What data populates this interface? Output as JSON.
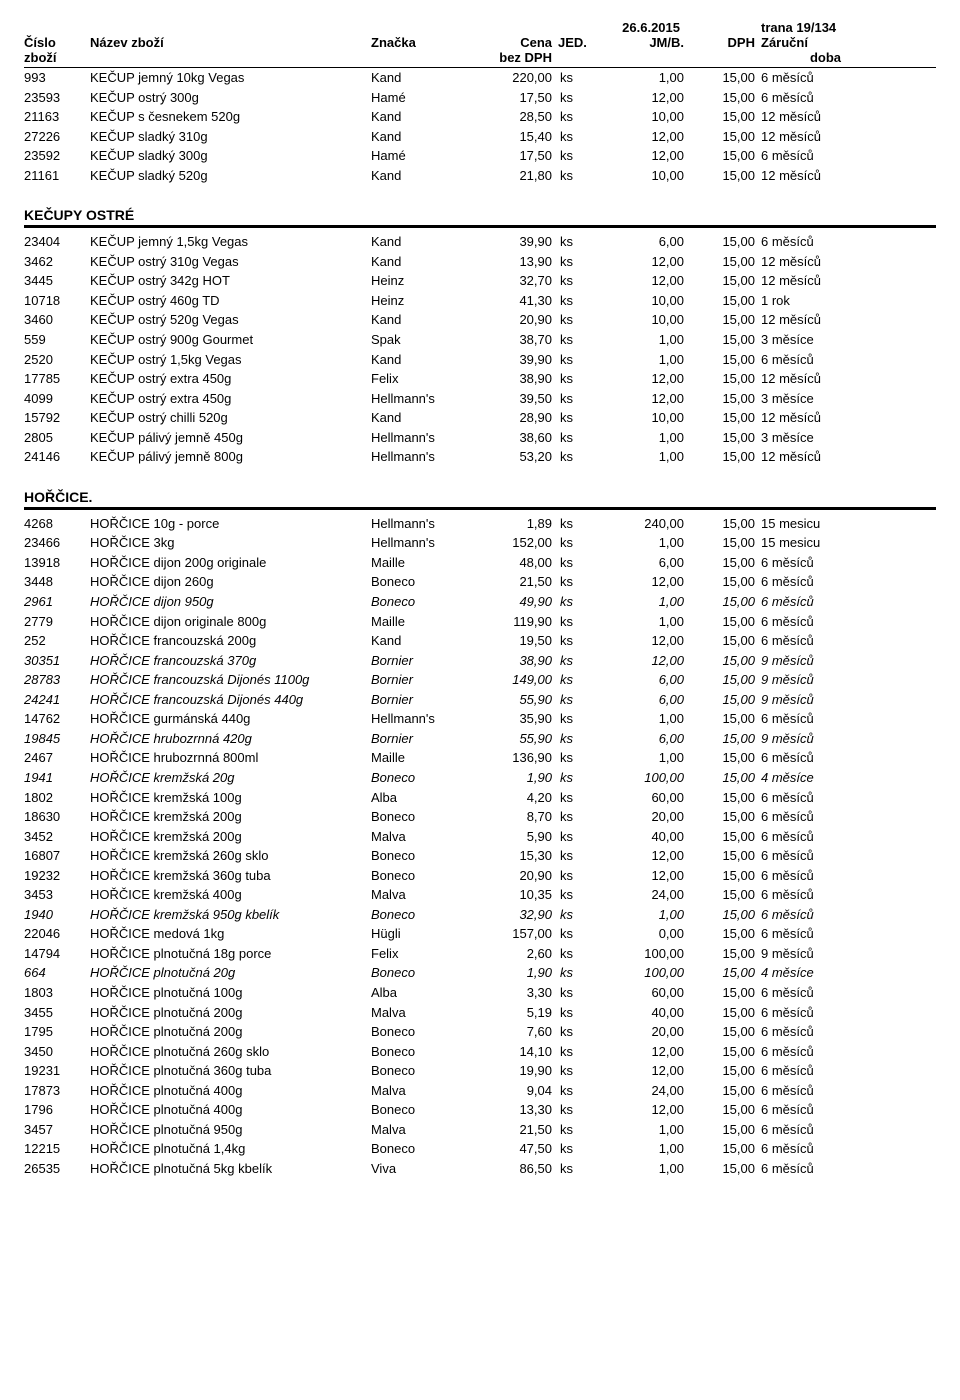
{
  "header": {
    "date": "26.6.2015",
    "page": "trana 19/134",
    "cislo": "Číslo",
    "zbozi": "zboží",
    "nazev": "Název zboží",
    "znacka": "Značka",
    "cena": "Cena",
    "bezdph": "bez DPH",
    "jed": "JED.",
    "jmb": "JM/B.",
    "dph": "DPH",
    "zarucni": "Záruční",
    "doba": "doba"
  },
  "sections": [
    {
      "title": "",
      "rows": [
        {
          "code": "993",
          "name": "KEČUP jemný 10kg Vegas",
          "brand": "Kand",
          "price": "220,00",
          "unit": "ks",
          "jmb": "1,00",
          "dph": "15,00",
          "warranty": "6 měsíců",
          "italic": false
        },
        {
          "code": "23593",
          "name": "KEČUP ostrý 300g",
          "brand": "Hamé",
          "price": "17,50",
          "unit": "ks",
          "jmb": "12,00",
          "dph": "15,00",
          "warranty": "6 měsíců",
          "italic": false
        },
        {
          "code": "21163",
          "name": "KEČUP s česnekem 520g",
          "brand": "Kand",
          "price": "28,50",
          "unit": "ks",
          "jmb": "10,00",
          "dph": "15,00",
          "warranty": "12 měsíců",
          "italic": false
        },
        {
          "code": "27226",
          "name": "KEČUP sladký 310g",
          "brand": "Kand",
          "price": "15,40",
          "unit": "ks",
          "jmb": "12,00",
          "dph": "15,00",
          "warranty": "12 měsíců",
          "italic": false
        },
        {
          "code": "23592",
          "name": "KEČUP sladký 300g",
          "brand": "Hamé",
          "price": "17,50",
          "unit": "ks",
          "jmb": "12,00",
          "dph": "15,00",
          "warranty": "6 měsíců",
          "italic": false
        },
        {
          "code": "21161",
          "name": "KEČUP sladký 520g",
          "brand": "Kand",
          "price": "21,80",
          "unit": "ks",
          "jmb": "10,00",
          "dph": "15,00",
          "warranty": "12 měsíců",
          "italic": false
        }
      ]
    },
    {
      "title": "KEČUPY OSTRÉ",
      "rows": [
        {
          "code": "23404",
          "name": "KEČUP jemný 1,5kg Vegas",
          "brand": "Kand",
          "price": "39,90",
          "unit": "ks",
          "jmb": "6,00",
          "dph": "15,00",
          "warranty": "6 měsíců",
          "italic": false
        },
        {
          "code": "3462",
          "name": "KEČUP ostrý 310g Vegas",
          "brand": "Kand",
          "price": "13,90",
          "unit": "ks",
          "jmb": "12,00",
          "dph": "15,00",
          "warranty": "12 měsíců",
          "italic": false
        },
        {
          "code": "3445",
          "name": "KEČUP ostrý 342g HOT",
          "brand": "Heinz",
          "price": "32,70",
          "unit": "ks",
          "jmb": "12,00",
          "dph": "15,00",
          "warranty": "12 měsíců",
          "italic": false
        },
        {
          "code": "10718",
          "name": "KEČUP ostrý 460g TD",
          "brand": "Heinz",
          "price": "41,30",
          "unit": "ks",
          "jmb": "10,00",
          "dph": "15,00",
          "warranty": "1 rok",
          "italic": false
        },
        {
          "code": "3460",
          "name": "KEČUP ostrý 520g Vegas",
          "brand": "Kand",
          "price": "20,90",
          "unit": "ks",
          "jmb": "10,00",
          "dph": "15,00",
          "warranty": "12 měsíců",
          "italic": false
        },
        {
          "code": "559",
          "name": "KEČUP ostrý 900g Gourmet",
          "brand": "Spak",
          "price": "38,70",
          "unit": "ks",
          "jmb": "1,00",
          "dph": "15,00",
          "warranty": "3 měsíce",
          "italic": false
        },
        {
          "code": "2520",
          "name": "KEČUP ostrý 1,5kg Vegas",
          "brand": "Kand",
          "price": "39,90",
          "unit": "ks",
          "jmb": "1,00",
          "dph": "15,00",
          "warranty": "6 měsíců",
          "italic": false
        },
        {
          "code": "17785",
          "name": "KEČUP ostrý extra 450g",
          "brand": "Felix",
          "price": "38,90",
          "unit": "ks",
          "jmb": "12,00",
          "dph": "15,00",
          "warranty": "12 měsíců",
          "italic": false
        },
        {
          "code": "4099",
          "name": "KEČUP ostrý extra 450g",
          "brand": "Hellmann's",
          "price": "39,50",
          "unit": "ks",
          "jmb": "12,00",
          "dph": "15,00",
          "warranty": "3 měsíce",
          "italic": false
        },
        {
          "code": "15792",
          "name": "KEČUP ostrý chilli 520g",
          "brand": "Kand",
          "price": "28,90",
          "unit": "ks",
          "jmb": "10,00",
          "dph": "15,00",
          "warranty": "12 měsíců",
          "italic": false
        },
        {
          "code": "2805",
          "name": "KEČUP pálivý jemně 450g",
          "brand": "Hellmann's",
          "price": "38,60",
          "unit": "ks",
          "jmb": "1,00",
          "dph": "15,00",
          "warranty": "3 měsíce",
          "italic": false
        },
        {
          "code": "24146",
          "name": "KEČUP pálivý jemně 800g",
          "brand": "Hellmann's",
          "price": "53,20",
          "unit": "ks",
          "jmb": "1,00",
          "dph": "15,00",
          "warranty": "12 měsíců",
          "italic": false
        }
      ]
    },
    {
      "title": "HOŘČICE.",
      "rows": [
        {
          "code": "4268",
          "name": "HOŘČICE 10g - porce",
          "brand": "Hellmann's",
          "price": "1,89",
          "unit": "ks",
          "jmb": "240,00",
          "dph": "15,00",
          "warranty": "15 mesicu",
          "italic": false
        },
        {
          "code": "23466",
          "name": "HOŘČICE 3kg",
          "brand": "Hellmann's",
          "price": "152,00",
          "unit": "ks",
          "jmb": "1,00",
          "dph": "15,00",
          "warranty": "15 mesicu",
          "italic": false
        },
        {
          "code": "13918",
          "name": "HOŘČICE dijon 200g originale",
          "brand": "Maille",
          "price": "48,00",
          "unit": "ks",
          "jmb": "6,00",
          "dph": "15,00",
          "warranty": "6 měsíců",
          "italic": false
        },
        {
          "code": "3448",
          "name": "HOŘČICE dijon 260g",
          "brand": "Boneco",
          "price": "21,50",
          "unit": "ks",
          "jmb": "12,00",
          "dph": "15,00",
          "warranty": "6 měsíců",
          "italic": false
        },
        {
          "code": "2961",
          "name": "HOŘČICE dijon 950g",
          "brand": "Boneco",
          "price": "49,90",
          "unit": "ks",
          "jmb": "1,00",
          "dph": "15,00",
          "warranty": "6 měsíců",
          "italic": true
        },
        {
          "code": "2779",
          "name": "HOŘČICE dijon originale 800g",
          "brand": "Maille",
          "price": "119,90",
          "unit": "ks",
          "jmb": "1,00",
          "dph": "15,00",
          "warranty": "6 měsíců",
          "italic": false
        },
        {
          "code": "252",
          "name": "HOŘČICE francouzská 200g",
          "brand": "Kand",
          "price": "19,50",
          "unit": "ks",
          "jmb": "12,00",
          "dph": "15,00",
          "warranty": "6 měsíců",
          "italic": false
        },
        {
          "code": "30351",
          "name": "HOŘČICE francouzská 370g",
          "brand": "Bornier",
          "price": "38,90",
          "unit": "ks",
          "jmb": "12,00",
          "dph": "15,00",
          "warranty": "9 měsíců",
          "italic": true
        },
        {
          "code": "28783",
          "name": "HOŘČICE francouzská Dijonés 1100g",
          "brand": "Bornier",
          "price": "149,00",
          "unit": "ks",
          "jmb": "6,00",
          "dph": "15,00",
          "warranty": "9 měsíců",
          "italic": true
        },
        {
          "code": "24241",
          "name": "HOŘČICE francouzská Dijonés 440g",
          "brand": "Bornier",
          "price": "55,90",
          "unit": "ks",
          "jmb": "6,00",
          "dph": "15,00",
          "warranty": "9 měsíců",
          "italic": true
        },
        {
          "code": "14762",
          "name": "HOŘČICE gurmánská 440g",
          "brand": "Hellmann's",
          "price": "35,90",
          "unit": "ks",
          "jmb": "1,00",
          "dph": "15,00",
          "warranty": "6 měsíců",
          "italic": false
        },
        {
          "code": "19845",
          "name": "HOŘČICE hrubozrnná 420g",
          "brand": "Bornier",
          "price": "55,90",
          "unit": "ks",
          "jmb": "6,00",
          "dph": "15,00",
          "warranty": "9 měsíců",
          "italic": true
        },
        {
          "code": "2467",
          "name": "HOŘČICE hrubozrnná 800ml",
          "brand": "Maille",
          "price": "136,90",
          "unit": "ks",
          "jmb": "1,00",
          "dph": "15,00",
          "warranty": "6 měsíců",
          "italic": false
        },
        {
          "code": "1941",
          "name": "HOŘČICE kremžská  20g",
          "brand": "Boneco",
          "price": "1,90",
          "unit": "ks",
          "jmb": "100,00",
          "dph": "15,00",
          "warranty": "4 měsíce",
          "italic": true
        },
        {
          "code": "1802",
          "name": "HOŘČICE kremžská 100g",
          "brand": "Alba",
          "price": "4,20",
          "unit": "ks",
          "jmb": "60,00",
          "dph": "15,00",
          "warranty": "6 měsíců",
          "italic": false
        },
        {
          "code": "18630",
          "name": "HOŘČICE kremžská 200g",
          "brand": "Boneco",
          "price": "8,70",
          "unit": "ks",
          "jmb": "20,00",
          "dph": "15,00",
          "warranty": "6 měsíců",
          "italic": false
        },
        {
          "code": "3452",
          "name": "HOŘČICE kremžská 200g",
          "brand": "Malva",
          "price": "5,90",
          "unit": "ks",
          "jmb": "40,00",
          "dph": "15,00",
          "warranty": "6 měsíců",
          "italic": false
        },
        {
          "code": "16807",
          "name": "HOŘČICE kremžská 260g sklo",
          "brand": "Boneco",
          "price": "15,30",
          "unit": "ks",
          "jmb": "12,00",
          "dph": "15,00",
          "warranty": "6 měsíců",
          "italic": false
        },
        {
          "code": "19232",
          "name": "HOŘČICE kremžská 360g  tuba",
          "brand": "Boneco",
          "price": "20,90",
          "unit": "ks",
          "jmb": "12,00",
          "dph": "15,00",
          "warranty": "6 měsíců",
          "italic": false
        },
        {
          "code": "3453",
          "name": "HOŘČICE kremžská 400g",
          "brand": "Malva",
          "price": "10,35",
          "unit": "ks",
          "jmb": "24,00",
          "dph": "15,00",
          "warranty": "6 měsíců",
          "italic": false
        },
        {
          "code": "1940",
          "name": "HOŘČICE kremžská 950g kbelík",
          "brand": "Boneco",
          "price": "32,90",
          "unit": "ks",
          "jmb": "1,00",
          "dph": "15,00",
          "warranty": "6 měsíců",
          "italic": true
        },
        {
          "code": "22046",
          "name": "HOŘČICE medová 1kg",
          "brand": "Hügli",
          "price": "157,00",
          "unit": "ks",
          "jmb": "0,00",
          "dph": "15,00",
          "warranty": "6 měsíců",
          "italic": false
        },
        {
          "code": "14794",
          "name": "HOŘČICE plnotučná   18g porce",
          "brand": "Felix",
          "price": "2,60",
          "unit": "ks",
          "jmb": "100,00",
          "dph": "15,00",
          "warranty": "9 měsíců",
          "italic": false
        },
        {
          "code": "664",
          "name": "HOŘČICE plnotučná   20g",
          "brand": "Boneco",
          "price": "1,90",
          "unit": "ks",
          "jmb": "100,00",
          "dph": "15,00",
          "warranty": "4 měsíce",
          "italic": true
        },
        {
          "code": "1803",
          "name": "HOŘČICE plnotučná  100g",
          "brand": "Alba",
          "price": "3,30",
          "unit": "ks",
          "jmb": "60,00",
          "dph": "15,00",
          "warranty": "6 měsíců",
          "italic": false
        },
        {
          "code": "3455",
          "name": "HOŘČICE plnotučná  200g",
          "brand": "Malva",
          "price": "5,19",
          "unit": "ks",
          "jmb": "40,00",
          "dph": "15,00",
          "warranty": "6 měsíců",
          "italic": false
        },
        {
          "code": "1795",
          "name": "HOŘČICE plnotučná  200g",
          "brand": "Boneco",
          "price": "7,60",
          "unit": "ks",
          "jmb": "20,00",
          "dph": "15,00",
          "warranty": "6 měsíců",
          "italic": false
        },
        {
          "code": "3450",
          "name": "HOŘČICE plnotučná  260g  sklo",
          "brand": "Boneco",
          "price": "14,10",
          "unit": "ks",
          "jmb": "12,00",
          "dph": "15,00",
          "warranty": "6 měsíců",
          "italic": false
        },
        {
          "code": "19231",
          "name": "HOŘČICE plnotučná  360g  tuba",
          "brand": "Boneco",
          "price": "19,90",
          "unit": "ks",
          "jmb": "12,00",
          "dph": "15,00",
          "warranty": "6 měsíců",
          "italic": false
        },
        {
          "code": "17873",
          "name": "HOŘČICE plnotučná  400g",
          "brand": "Malva",
          "price": "9,04",
          "unit": "ks",
          "jmb": "24,00",
          "dph": "15,00",
          "warranty": "6 měsíců",
          "italic": false
        },
        {
          "code": "1796",
          "name": "HOŘČICE plnotučná  400g",
          "brand": "Boneco",
          "price": "13,30",
          "unit": "ks",
          "jmb": "12,00",
          "dph": "15,00",
          "warranty": "6 měsíců",
          "italic": false
        },
        {
          "code": "3457",
          "name": "HOŘČICE plnotučná  950g",
          "brand": "Malva",
          "price": "21,50",
          "unit": "ks",
          "jmb": "1,00",
          "dph": "15,00",
          "warranty": "6 měsíců",
          "italic": false
        },
        {
          "code": "12215",
          "name": "HOŘČICE plnotučná 1,4kg",
          "brand": "Boneco",
          "price": "47,50",
          "unit": "ks",
          "jmb": "1,00",
          "dph": "15,00",
          "warranty": "6 měsíců",
          "italic": false
        },
        {
          "code": "26535",
          "name": "HOŘČICE plnotučná 5kg kbelík",
          "brand": "Viva",
          "price": "86,50",
          "unit": "ks",
          "jmb": "1,00",
          "dph": "15,00",
          "warranty": "6 měsíců",
          "italic": false
        }
      ]
    }
  ]
}
